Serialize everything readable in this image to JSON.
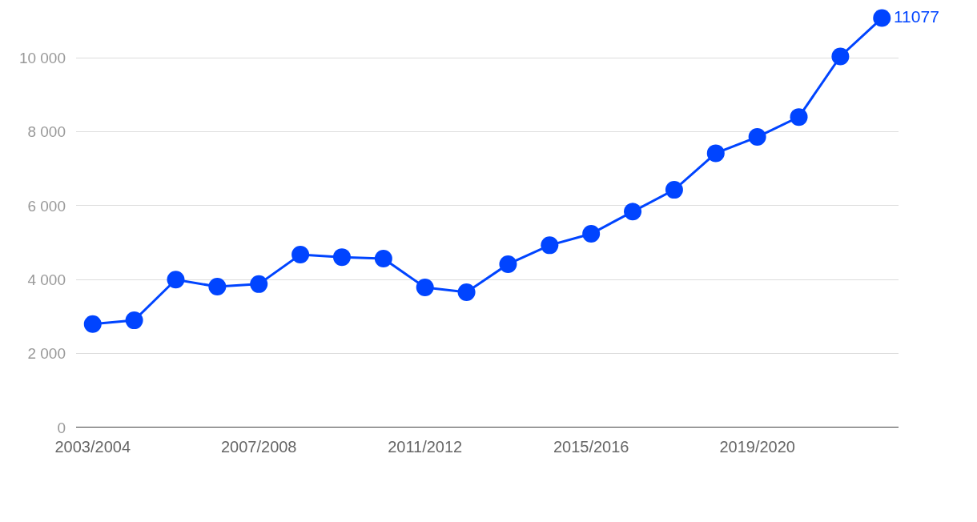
{
  "chart_data": {
    "type": "line",
    "categories": [
      "2003/2004",
      null,
      null,
      null,
      "2007/2008",
      null,
      null,
      null,
      "2011/2012",
      null,
      null,
      null,
      "2015/2016",
      null,
      null,
      null,
      "2019/2020",
      null,
      null,
      null
    ],
    "series": [
      {
        "color": "#0044ff",
        "values": [
          2800,
          2900,
          4000,
          3810,
          3880,
          4680,
          4610,
          4570,
          3790,
          3660,
          4420,
          4930,
          5240,
          5840,
          6430,
          7420,
          7860,
          8400,
          10040,
          11077
        ],
        "value_labels": [
          null,
          null,
          null,
          null,
          null,
          null,
          null,
          null,
          null,
          null,
          null,
          null,
          null,
          null,
          null,
          null,
          null,
          null,
          null,
          "11077"
        ]
      }
    ],
    "ylim": [
      0,
      11500
    ],
    "yticks": [
      0,
      {
        "value": 2000,
        "label": "2 000"
      },
      {
        "value": 4000,
        "label": "4 000"
      },
      {
        "value": 6000,
        "label": "6 000"
      },
      {
        "value": 8000,
        "label": "8 000"
      },
      {
        "value": 10000,
        "label": "10 000"
      }
    ],
    "grid": "y",
    "marker": "circle",
    "line_style": "solid"
  }
}
